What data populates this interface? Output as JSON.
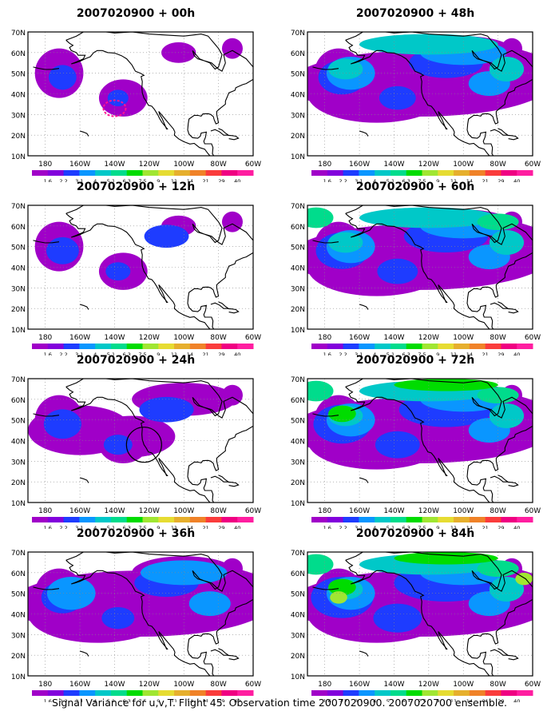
{
  "panels": [
    {
      "title": "2007020900 + 00h",
      "hour": 0
    },
    {
      "title": "2007020900 + 48h",
      "hour": 48
    },
    {
      "title": "2007020900 + 12h",
      "hour": 12
    },
    {
      "title": "2007020900 + 60h",
      "hour": 60
    },
    {
      "title": "2007020900 + 24h",
      "hour": 24
    },
    {
      "title": "2007020900 + 72h",
      "hour": 72
    },
    {
      "title": "2007020900 + 36h",
      "hour": 36
    },
    {
      "title": "2007020900 + 84h",
      "hour": 84
    }
  ],
  "map": {
    "lon_labels": [
      "180",
      "160W",
      "140W",
      "120W",
      "100W",
      "80W",
      "60W"
    ],
    "lat_labels": [
      "70N",
      "60N",
      "50N",
      "40N",
      "30N",
      "20N",
      "10N"
    ],
    "lon_range": [
      -190,
      -60
    ],
    "lat_range": [
      10,
      70
    ]
  },
  "colorbar": {
    "labels": [
      "1.6",
      "2.2",
      "3.1",
      "4",
      "5.1",
      "6.3",
      "7.5",
      "9",
      "11",
      "14",
      "21",
      "29",
      "40"
    ],
    "colors": [
      "#a000c8",
      "#8200dc",
      "#1e3cff",
      "#0a96ff",
      "#00c8c8",
      "#00dc8c",
      "#00dc00",
      "#a0e632",
      "#e6dc32",
      "#e6af2d",
      "#f08228",
      "#fa3c3c",
      "#f00082",
      "#ff1ea0"
    ]
  },
  "caption": "Signal Variance for u,v,T. Flight 45. Observation time 2007020900. 2007020700 ensemble."
}
